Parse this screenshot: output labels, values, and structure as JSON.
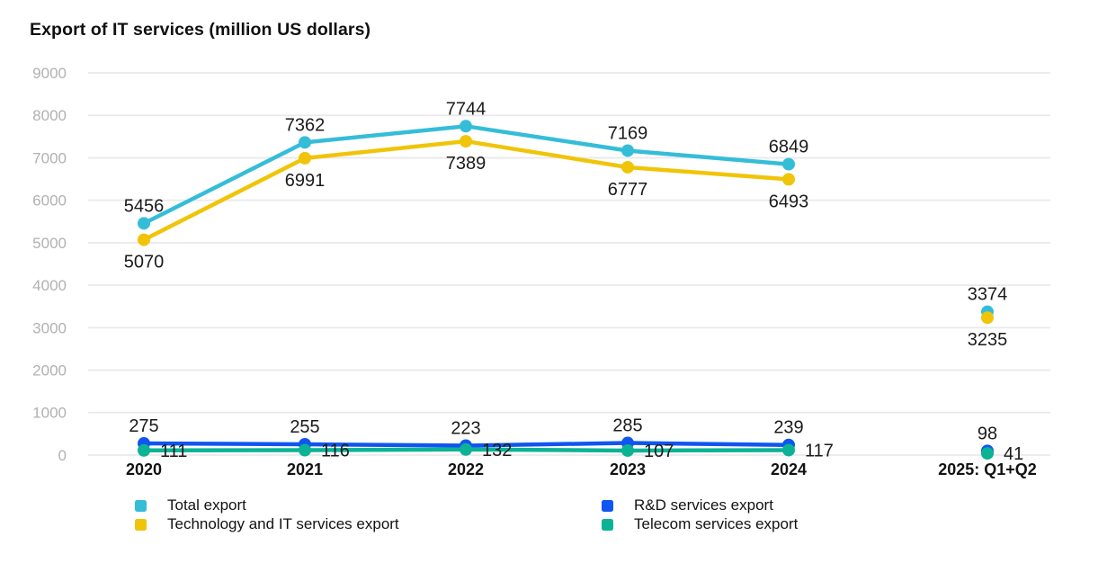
{
  "page": {
    "background": "#ffffff"
  },
  "chart_data": {
    "type": "line",
    "title": "Export of IT services (million US dollars)",
    "categories": [
      "2020",
      "2021",
      "2022",
      "2023",
      "2024",
      "2025: Q1+Q2"
    ],
    "detached_last_category": true,
    "grid": true,
    "legend_position": "bottom",
    "y_axis": {
      "range": [
        0,
        9000
      ],
      "ticks": [
        0,
        1000,
        2000,
        3000,
        4000,
        5000,
        6000,
        7000,
        8000,
        9000
      ],
      "tick_color": "#b1b1b5",
      "grid_color": "#e9e9eb"
    },
    "x_axis": {
      "label_color": "#121214"
    },
    "value_label_color": "#1b1b1d",
    "series": [
      {
        "name": "Total export",
        "color": "#35bdd8",
        "values": [
          5456,
          7362,
          7744,
          7169,
          6849,
          3374
        ],
        "label_placement": "above"
      },
      {
        "name": "Technology and IT services export",
        "color": "#f0c408",
        "values": [
          5070,
          6991,
          7389,
          6777,
          6493,
          3235
        ],
        "label_placement": "below"
      },
      {
        "name": "R&D services export",
        "color": "#0f56f0",
        "values": [
          275,
          255,
          223,
          285,
          239,
          98
        ],
        "label_placement": "above"
      },
      {
        "name": "Telecom services export",
        "color": "#0cb295",
        "values": [
          111,
          116,
          132,
          107,
          117,
          41
        ],
        "label_placement": "right"
      }
    ]
  }
}
